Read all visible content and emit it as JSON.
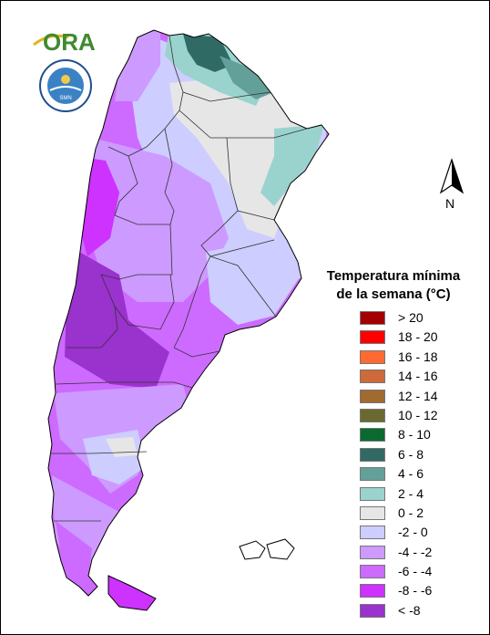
{
  "logo": {
    "text": "ORA"
  },
  "seal": {
    "text": "SERVICIO METEOROLÓGICO NACIONAL · ARGENTINA",
    "center": "SMN"
  },
  "north_arrow": {
    "label": "N"
  },
  "legend": {
    "title_line1": "Temperatura mínima",
    "title_line2": "de la semana (°C)",
    "items": [
      {
        "label": "> 20",
        "color": "#a50000"
      },
      {
        "label": "18 - 20",
        "color": "#ff0000"
      },
      {
        "label": "16 - 18",
        "color": "#ff6a32"
      },
      {
        "label": "14 - 16",
        "color": "#cd6a3a"
      },
      {
        "label": "12 - 14",
        "color": "#a06a30"
      },
      {
        "label": "10 - 12",
        "color": "#6a6a30"
      },
      {
        "label": "8 - 10",
        "color": "#0a6a30"
      },
      {
        "label": "6 - 8",
        "color": "#306a64"
      },
      {
        "label": "4 - 6",
        "color": "#63a09a"
      },
      {
        "label": "2 - 4",
        "color": "#9ad3cd"
      },
      {
        "label": "0 - 2",
        "color": "#e6e6e6"
      },
      {
        "label": "-2 - 0",
        "color": "#cdcdff"
      },
      {
        "label": "-4 - -2",
        "color": "#cd9aff"
      },
      {
        "label": "-6 - -4",
        "color": "#cd6aff"
      },
      {
        "label": "-8 - -6",
        "color": "#cd32ff"
      },
      {
        "label": "< -8",
        "color": "#9a32cd"
      }
    ]
  }
}
